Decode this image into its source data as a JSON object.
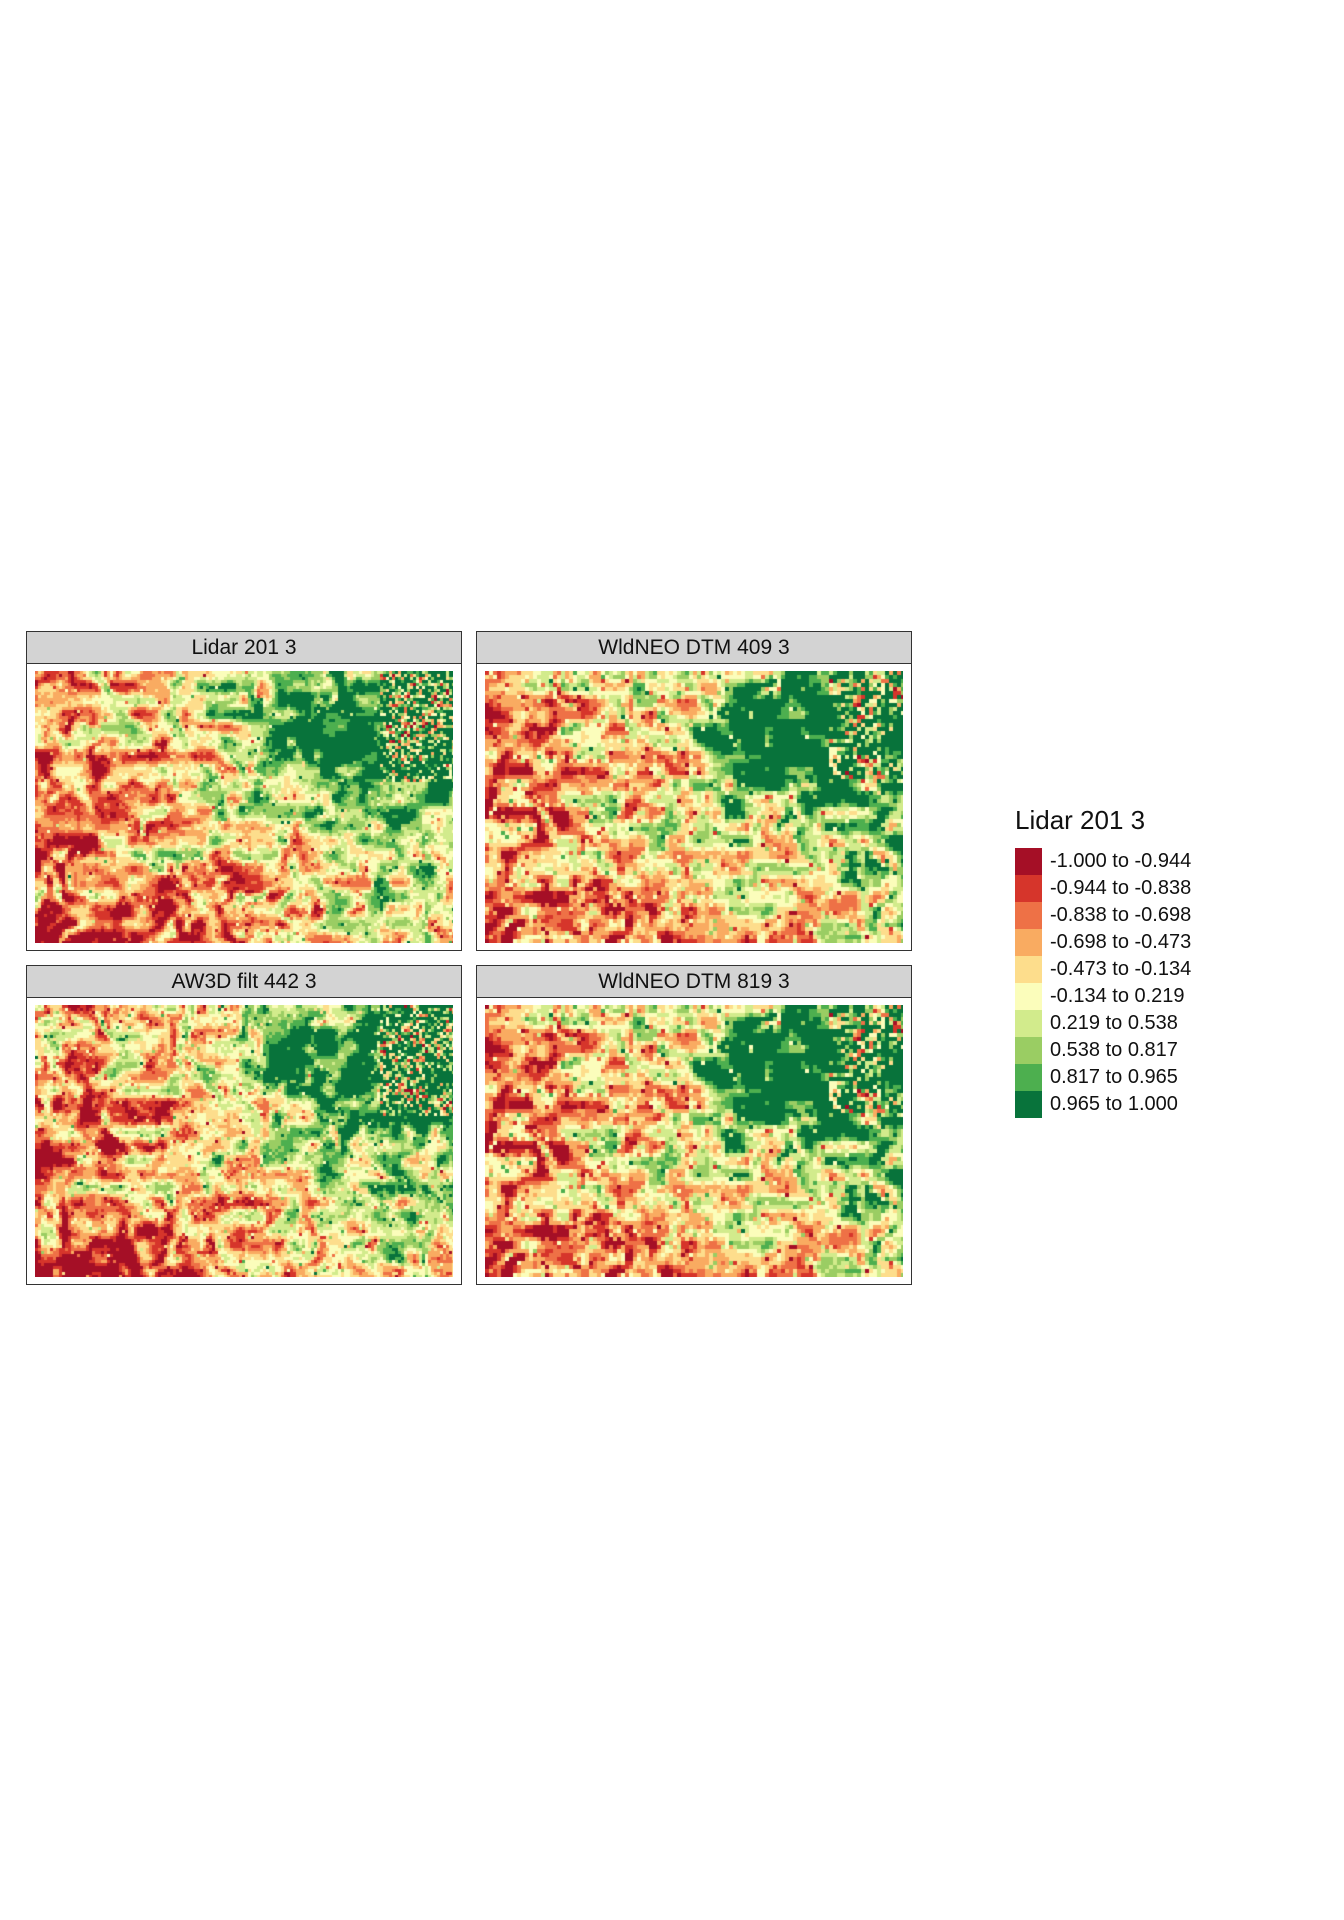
{
  "panels": [
    {
      "title": "Lidar 201 3",
      "variant": "lidar"
    },
    {
      "title": "WldNEO DTM 409 3",
      "variant": "wldneo"
    },
    {
      "title": "AW3D filt 442 3",
      "variant": "aw3d"
    },
    {
      "title": "WldNEO DTM 819 3",
      "variant": "wldneo2"
    }
  ],
  "legend": {
    "title": "Lidar 201 3",
    "items": [
      {
        "label": "-1.000 to -0.944",
        "color": "#a50f26"
      },
      {
        "label": "-0.944 to -0.838",
        "color": "#d6352b"
      },
      {
        "label": "-0.838 to -0.698",
        "color": "#ee7146"
      },
      {
        "label": "-0.698 to -0.473",
        "color": "#f9ab61"
      },
      {
        "label": "-0.473 to -0.134",
        "color": "#fddd8c"
      },
      {
        "label": "-0.134 to 0.219",
        "color": "#fbfdbb"
      },
      {
        "label": "0.219 to 0.538",
        "color": "#d2eb8c"
      },
      {
        "label": "0.538 to 0.817",
        "color": "#9acd63"
      },
      {
        "label": "0.817 to 0.965",
        "color": "#4daf4f"
      },
      {
        "label": "0.965 to 1.000",
        "color": "#08733b"
      }
    ]
  }
}
